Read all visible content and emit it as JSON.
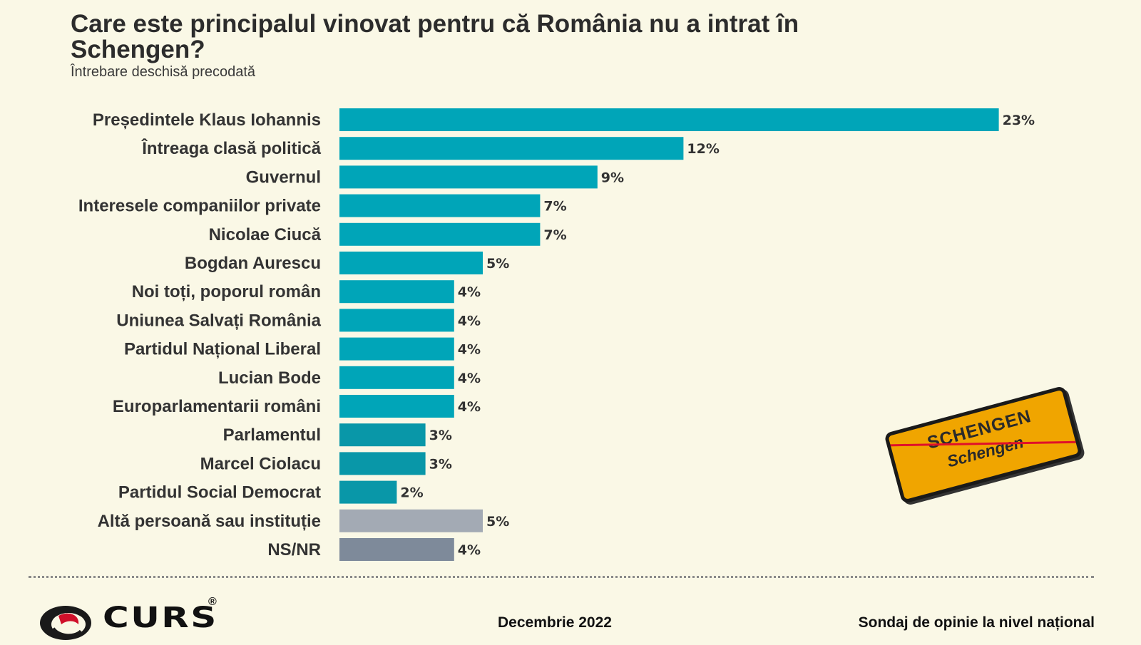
{
  "header": {
    "title": "Care este principalul vinovat pentru că România nu a intrat în Schengen?",
    "subtitle": "Întrebare deschisă precodată"
  },
  "chart_data": {
    "type": "bar",
    "orientation": "horizontal",
    "title": "Care este principalul vinovat pentru că România nu a intrat în Schengen?",
    "subtitle": "Întrebare deschisă precodată",
    "unit": "%",
    "xlim": [
      0,
      25
    ],
    "categories": [
      "Președintele Klaus Iohannis",
      "Întreaga clasă politică",
      "Guvernul",
      "Interesele companiilor private",
      "Nicolae Ciucă",
      "Bogdan Aurescu",
      "Noi toți, poporul român",
      "Uniunea Salvați România",
      "Partidul Național Liberal",
      "Lucian Bode",
      "Europarlamentarii români",
      "Parlamentul",
      "Marcel Ciolacu",
      "Partidul Social Democrat",
      "Altă persoană sau instituție",
      "NS/NR"
    ],
    "values": [
      23,
      12,
      9,
      7,
      7,
      5,
      4,
      4,
      4,
      4,
      4,
      3,
      3,
      2,
      5,
      4
    ],
    "value_labels": [
      "23%",
      "12%",
      "9%",
      "7%",
      "7%",
      "5%",
      "4%",
      "4%",
      "4%",
      "4%",
      "4%",
      "3%",
      "3%",
      "2%",
      "5%",
      "4%"
    ],
    "colors": [
      "#00a5b8",
      "#00a5b8",
      "#00a5b8",
      "#00a5b8",
      "#00a5b8",
      "#00a5b8",
      "#00a5b8",
      "#00a5b8",
      "#00a5b8",
      "#00a5b8",
      "#00a5b8",
      "#0997a8",
      "#0997a8",
      "#0997a8",
      "#a3aab4",
      "#7e8a9a"
    ]
  },
  "sign": {
    "top_text": "SCHENGEN",
    "bottom_text": "Schengen"
  },
  "footer": {
    "brand": "CURS",
    "registered": "®",
    "date": "Decembrie 2022",
    "source": "Sondaj de opinie la nivel național"
  }
}
